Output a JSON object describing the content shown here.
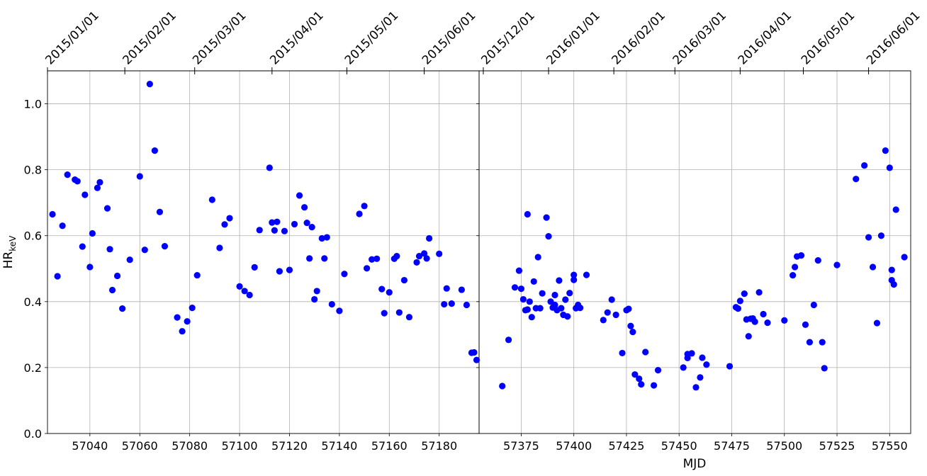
{
  "chart_data": {
    "type": "scatter",
    "ylabel": "HR",
    "ylabel_sub": "keV",
    "xlabel": "MJD",
    "grid": true,
    "marker_color": "#0000ff",
    "ylim": [
      0,
      1.1
    ],
    "yticks": [
      "0.0",
      "0.2",
      "0.4",
      "0.6",
      "0.8",
      "1.0"
    ],
    "panels": [
      {
        "xlim": [
          57023,
          57196
        ],
        "xticks": [
          57040,
          57060,
          57080,
          57100,
          57120,
          57140,
          57160,
          57180
        ],
        "date_axis": [
          {
            "mjd": 57023,
            "label": "2015/01/01"
          },
          {
            "mjd": 57054,
            "label": "2015/02/01"
          },
          {
            "mjd": 57082,
            "label": "2015/03/01"
          },
          {
            "mjd": 57113,
            "label": "2015/04/01"
          },
          {
            "mjd": 57143,
            "label": "2015/05/01"
          },
          {
            "mjd": 57174,
            "label": "2015/06/01"
          }
        ],
        "points": [
          [
            57025,
            0.665
          ],
          [
            57027,
            0.477
          ],
          [
            57029,
            0.63
          ],
          [
            57031,
            0.785
          ],
          [
            57034,
            0.77
          ],
          [
            57035,
            0.765
          ],
          [
            57037,
            0.567
          ],
          [
            57038,
            0.724
          ],
          [
            57040,
            0.505
          ],
          [
            57041,
            0.607
          ],
          [
            57043,
            0.745
          ],
          [
            57044,
            0.762
          ],
          [
            57047,
            0.683
          ],
          [
            57048,
            0.559
          ],
          [
            57049,
            0.435
          ],
          [
            57051,
            0.478
          ],
          [
            57053,
            0.379
          ],
          [
            57056,
            0.527
          ],
          [
            57060,
            0.78
          ],
          [
            57062,
            0.557
          ],
          [
            57064,
            1.06
          ],
          [
            57066,
            0.858
          ],
          [
            57068,
            0.672
          ],
          [
            57070,
            0.568
          ],
          [
            57075,
            0.352
          ],
          [
            57077,
            0.31
          ],
          [
            57079,
            0.34
          ],
          [
            57081,
            0.381
          ],
          [
            57083,
            0.48
          ],
          [
            57089,
            0.709
          ],
          [
            57092,
            0.563
          ],
          [
            57094,
            0.634
          ],
          [
            57096,
            0.653
          ],
          [
            57100,
            0.446
          ],
          [
            57102,
            0.432
          ],
          [
            57104,
            0.42
          ],
          [
            57106,
            0.504
          ],
          [
            57108,
            0.617
          ],
          [
            57112,
            0.806
          ],
          [
            57113,
            0.64
          ],
          [
            57114,
            0.616
          ],
          [
            57115,
            0.642
          ],
          [
            57116,
            0.492
          ],
          [
            57118,
            0.614
          ],
          [
            57120,
            0.496
          ],
          [
            57122,
            0.635
          ],
          [
            57124,
            0.722
          ],
          [
            57126,
            0.686
          ],
          [
            57127,
            0.639
          ],
          [
            57128,
            0.531
          ],
          [
            57129,
            0.626
          ],
          [
            57130,
            0.407
          ],
          [
            57131,
            0.432
          ],
          [
            57133,
            0.592
          ],
          [
            57134,
            0.531
          ],
          [
            57135,
            0.595
          ],
          [
            57137,
            0.392
          ],
          [
            57140,
            0.372
          ],
          [
            57142,
            0.484
          ],
          [
            57148,
            0.666
          ],
          [
            57150,
            0.69
          ],
          [
            57151,
            0.501
          ],
          [
            57153,
            0.528
          ],
          [
            57155,
            0.53
          ],
          [
            57157,
            0.438
          ],
          [
            57158,
            0.365
          ],
          [
            57160,
            0.428
          ],
          [
            57162,
            0.53
          ],
          [
            57163,
            0.538
          ],
          [
            57164,
            0.367
          ],
          [
            57166,
            0.465
          ],
          [
            57168,
            0.353
          ],
          [
            57171,
            0.519
          ],
          [
            57172,
            0.538
          ],
          [
            57174,
            0.546
          ],
          [
            57175,
            0.531
          ],
          [
            57176,
            0.592
          ],
          [
            57180,
            0.545
          ],
          [
            57182,
            0.392
          ],
          [
            57183,
            0.44
          ],
          [
            57185,
            0.394
          ],
          [
            57189,
            0.436
          ],
          [
            57191,
            0.39
          ],
          [
            57193,
            0.245
          ],
          [
            57194,
            0.246
          ],
          [
            57195,
            0.223
          ]
        ]
      },
      {
        "xlim": [
          57355,
          57560
        ],
        "xticks": [
          57375,
          57400,
          57425,
          57450,
          57475,
          57500,
          57525,
          57550
        ],
        "date_axis": [
          {
            "mjd": 57357,
            "label": "2015/12/01"
          },
          {
            "mjd": 57388,
            "label": "2016/01/01"
          },
          {
            "mjd": 57419,
            "label": "2016/02/01"
          },
          {
            "mjd": 57448,
            "label": "2016/03/01"
          },
          {
            "mjd": 57479,
            "label": "2016/04/01"
          },
          {
            "mjd": 57509,
            "label": "2016/05/01"
          },
          {
            "mjd": 57540,
            "label": "2016/06/01"
          }
        ],
        "points": [
          [
            57366,
            0.144
          ],
          [
            57369,
            0.284
          ],
          [
            57372,
            0.443
          ],
          [
            57374,
            0.494
          ],
          [
            57375,
            0.439
          ],
          [
            57376,
            0.407
          ],
          [
            57377,
            0.374
          ],
          [
            57378,
            0.376
          ],
          [
            57378,
            0.665
          ],
          [
            57379,
            0.4
          ],
          [
            57380,
            0.353
          ],
          [
            57381,
            0.461
          ],
          [
            57382,
            0.38
          ],
          [
            57383,
            0.535
          ],
          [
            57384,
            0.38
          ],
          [
            57385,
            0.425
          ],
          [
            57387,
            0.655
          ],
          [
            57388,
            0.598
          ],
          [
            57389,
            0.4
          ],
          [
            57390,
            0.382
          ],
          [
            57391,
            0.42
          ],
          [
            57391,
            0.39
          ],
          [
            57392,
            0.374
          ],
          [
            57393,
            0.464
          ],
          [
            57394,
            0.38
          ],
          [
            57395,
            0.36
          ],
          [
            57396,
            0.406
          ],
          [
            57397,
            0.355
          ],
          [
            57398,
            0.426
          ],
          [
            57400,
            0.466
          ],
          [
            57400,
            0.481
          ],
          [
            57401,
            0.38
          ],
          [
            57402,
            0.39
          ],
          [
            57403,
            0.381
          ],
          [
            57406,
            0.481
          ],
          [
            57414,
            0.344
          ],
          [
            57416,
            0.367
          ],
          [
            57418,
            0.406
          ],
          [
            57420,
            0.36
          ],
          [
            57423,
            0.244
          ],
          [
            57425,
            0.374
          ],
          [
            57426,
            0.378
          ],
          [
            57427,
            0.326
          ],
          [
            57428,
            0.308
          ],
          [
            57429,
            0.179
          ],
          [
            57431,
            0.166
          ],
          [
            57432,
            0.149
          ],
          [
            57434,
            0.247
          ],
          [
            57438,
            0.146
          ],
          [
            57440,
            0.192
          ],
          [
            57452,
            0.2
          ],
          [
            57454,
            0.241
          ],
          [
            57454,
            0.229
          ],
          [
            57456,
            0.243
          ],
          [
            57458,
            0.14
          ],
          [
            57460,
            0.17
          ],
          [
            57461,
            0.23
          ],
          [
            57463,
            0.209
          ],
          [
            57474,
            0.204
          ],
          [
            57477,
            0.383
          ],
          [
            57478,
            0.379
          ],
          [
            57479,
            0.402
          ],
          [
            57481,
            0.424
          ],
          [
            57482,
            0.346
          ],
          [
            57483,
            0.295
          ],
          [
            57484,
            0.348
          ],
          [
            57485,
            0.349
          ],
          [
            57486,
            0.339
          ],
          [
            57488,
            0.428
          ],
          [
            57490,
            0.362
          ],
          [
            57492,
            0.336
          ],
          [
            57500,
            0.343
          ],
          [
            57504,
            0.48
          ],
          [
            57505,
            0.505
          ],
          [
            57506,
            0.537
          ],
          [
            57508,
            0.54
          ],
          [
            57510,
            0.33
          ],
          [
            57512,
            0.277
          ],
          [
            57514,
            0.39
          ],
          [
            57516,
            0.525
          ],
          [
            57518,
            0.277
          ],
          [
            57519,
            0.198
          ],
          [
            57525,
            0.511
          ],
          [
            57534,
            0.772
          ],
          [
            57538,
            0.813
          ],
          [
            57540,
            0.595
          ],
          [
            57542,
            0.505
          ],
          [
            57544,
            0.335
          ],
          [
            57546,
            0.6
          ],
          [
            57548,
            0.858
          ],
          [
            57550,
            0.806
          ],
          [
            57551,
            0.496
          ],
          [
            57551,
            0.465
          ],
          [
            57552,
            0.452
          ],
          [
            57553,
            0.679
          ],
          [
            57557,
            0.535
          ]
        ]
      }
    ]
  }
}
